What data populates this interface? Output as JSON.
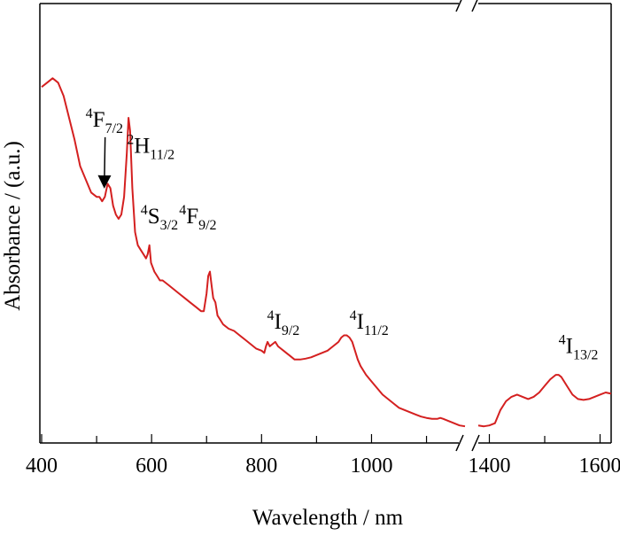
{
  "chart_data": {
    "type": "line",
    "xlabel": "Wavelength / nm",
    "ylabel": "Absorbance / (a.u.)",
    "x_ticks": [
      400,
      600,
      800,
      1000,
      1400,
      1600
    ],
    "x_ranges": [
      [
        400,
        1170
      ],
      [
        1380,
        1620
      ]
    ],
    "x_break_after": 1170,
    "y_range": [
      0,
      1
    ],
    "line_color": "#d42020",
    "series": [
      {
        "segments": [
          [
            [
              400,
              0.81
            ],
            [
              410,
              0.82
            ],
            [
              420,
              0.83
            ],
            [
              430,
              0.82
            ],
            [
              440,
              0.79
            ],
            [
              450,
              0.74
            ],
            [
              460,
              0.69
            ],
            [
              470,
              0.63
            ],
            [
              480,
              0.6
            ],
            [
              490,
              0.57
            ],
            [
              500,
              0.56
            ],
            [
              505,
              0.56
            ],
            [
              510,
              0.55
            ],
            [
              515,
              0.56
            ],
            [
              520,
              0.59
            ],
            [
              525,
              0.58
            ],
            [
              530,
              0.54
            ],
            [
              535,
              0.52
            ],
            [
              540,
              0.51
            ],
            [
              545,
              0.52
            ],
            [
              550,
              0.56
            ],
            [
              555,
              0.66
            ],
            [
              558,
              0.74
            ],
            [
              561,
              0.71
            ],
            [
              565,
              0.58
            ],
            [
              570,
              0.48
            ],
            [
              575,
              0.45
            ],
            [
              580,
              0.44
            ],
            [
              585,
              0.43
            ],
            [
              590,
              0.42
            ],
            [
              593,
              0.43
            ],
            [
              596,
              0.45
            ],
            [
              599,
              0.41
            ],
            [
              605,
              0.39
            ],
            [
              610,
              0.38
            ],
            [
              615,
              0.37
            ],
            [
              620,
              0.37
            ],
            [
              630,
              0.36
            ],
            [
              640,
              0.35
            ],
            [
              650,
              0.34
            ],
            [
              660,
              0.33
            ],
            [
              670,
              0.32
            ],
            [
              680,
              0.31
            ],
            [
              690,
              0.3
            ],
            [
              695,
              0.3
            ],
            [
              700,
              0.34
            ],
            [
              703,
              0.38
            ],
            [
              706,
              0.39
            ],
            [
              709,
              0.36
            ],
            [
              712,
              0.33
            ],
            [
              716,
              0.32
            ],
            [
              720,
              0.29
            ],
            [
              725,
              0.28
            ],
            [
              730,
              0.27
            ],
            [
              740,
              0.26
            ],
            [
              750,
              0.255
            ],
            [
              760,
              0.245
            ],
            [
              770,
              0.235
            ],
            [
              780,
              0.225
            ],
            [
              790,
              0.215
            ],
            [
              800,
              0.21
            ],
            [
              805,
              0.205
            ],
            [
              808,
              0.22
            ],
            [
              811,
              0.23
            ],
            [
              815,
              0.22
            ],
            [
              820,
              0.225
            ],
            [
              825,
              0.23
            ],
            [
              830,
              0.22
            ],
            [
              835,
              0.215
            ],
            [
              840,
              0.21
            ],
            [
              845,
              0.205
            ],
            [
              850,
              0.2
            ],
            [
              855,
              0.195
            ],
            [
              860,
              0.19
            ],
            [
              870,
              0.19
            ],
            [
              880,
              0.192
            ],
            [
              890,
              0.195
            ],
            [
              900,
              0.2
            ],
            [
              910,
              0.205
            ],
            [
              920,
              0.21
            ],
            [
              930,
              0.22
            ],
            [
              940,
              0.23
            ],
            [
              945,
              0.24
            ],
            [
              950,
              0.245
            ],
            [
              955,
              0.245
            ],
            [
              960,
              0.24
            ],
            [
              965,
              0.23
            ],
            [
              970,
              0.21
            ],
            [
              975,
              0.19
            ],
            [
              980,
              0.175
            ],
            [
              990,
              0.155
            ],
            [
              1000,
              0.14
            ],
            [
              1010,
              0.125
            ],
            [
              1020,
              0.11
            ],
            [
              1030,
              0.1
            ],
            [
              1040,
              0.09
            ],
            [
              1050,
              0.08
            ],
            [
              1060,
              0.075
            ],
            [
              1070,
              0.07
            ],
            [
              1080,
              0.065
            ],
            [
              1090,
              0.06
            ],
            [
              1100,
              0.057
            ],
            [
              1110,
              0.055
            ],
            [
              1120,
              0.055
            ],
            [
              1125,
              0.057
            ],
            [
              1130,
              0.055
            ],
            [
              1140,
              0.05
            ],
            [
              1150,
              0.045
            ],
            [
              1160,
              0.04
            ],
            [
              1170,
              0.038
            ]
          ],
          [
            [
              1380,
              0.04
            ],
            [
              1390,
              0.038
            ],
            [
              1400,
              0.04
            ],
            [
              1410,
              0.045
            ],
            [
              1420,
              0.075
            ],
            [
              1430,
              0.095
            ],
            [
              1440,
              0.105
            ],
            [
              1450,
              0.11
            ],
            [
              1460,
              0.105
            ],
            [
              1470,
              0.1
            ],
            [
              1480,
              0.105
            ],
            [
              1490,
              0.115
            ],
            [
              1500,
              0.13
            ],
            [
              1510,
              0.145
            ],
            [
              1520,
              0.155
            ],
            [
              1525,
              0.155
            ],
            [
              1530,
              0.15
            ],
            [
              1540,
              0.13
            ],
            [
              1550,
              0.11
            ],
            [
              1560,
              0.1
            ],
            [
              1570,
              0.098
            ],
            [
              1580,
              0.1
            ],
            [
              1590,
              0.105
            ],
            [
              1600,
              0.11
            ],
            [
              1610,
              0.115
            ],
            [
              1620,
              0.112
            ]
          ]
        ]
      }
    ],
    "annotations": [
      {
        "label": "F",
        "sup": "4",
        "sub": "7/2",
        "x": 480,
        "y": 0.72
      },
      {
        "label": "H",
        "sup": "2",
        "sub": "11/2",
        "x": 555,
        "y": 0.66
      },
      {
        "label": "S",
        "sup": "4",
        "sub": "3/2",
        "x": 580,
        "y": 0.5
      },
      {
        "label": "F",
        "sup": "4",
        "sub": "9/2",
        "x": 650,
        "y": 0.5
      },
      {
        "label": "I",
        "sup": "4",
        "sub": "9/2",
        "x": 810,
        "y": 0.26
      },
      {
        "label": "I",
        "sup": "4",
        "sub": "11/2",
        "x": 960,
        "y": 0.26
      },
      {
        "label": "I",
        "sup": "4",
        "sub": "13/2",
        "x": 1525,
        "y": 0.205
      }
    ]
  }
}
